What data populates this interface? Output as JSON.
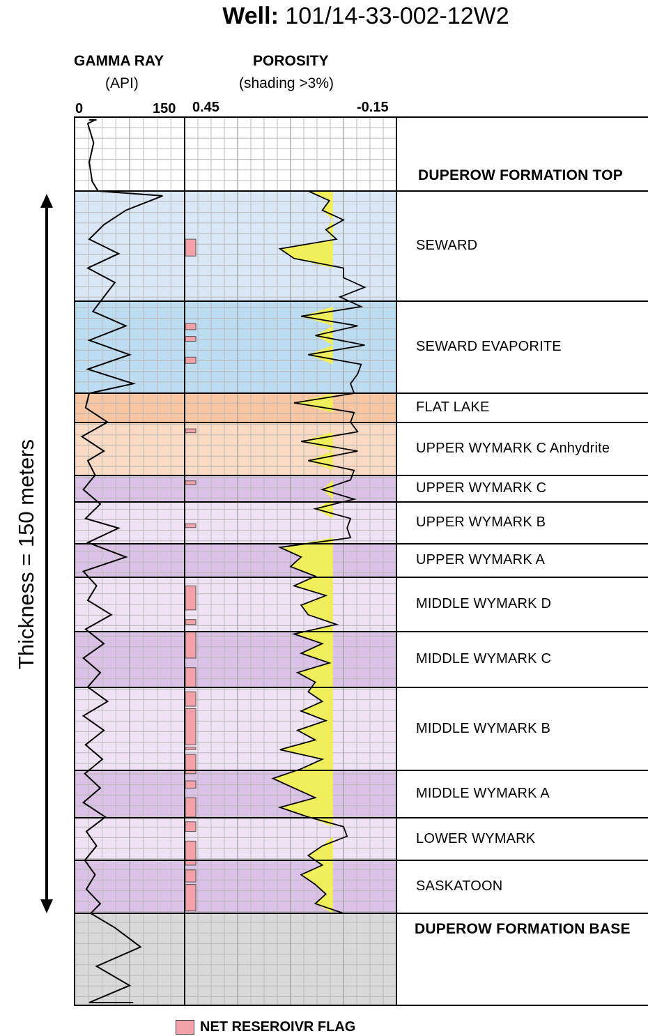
{
  "title_prefix": "Well:",
  "title_value": "101/14-33-002-12W2",
  "axis_label": "Thickness = 150 meters",
  "legend_label": "NET RESEROIVR FLAG",
  "tracks": {
    "gamma": {
      "title": "GAMMA RAY",
      "unit": "(API)",
      "min_label": "0",
      "max_label": "150"
    },
    "porosity": {
      "title": "POROSITY",
      "unit": "(shading >3%)",
      "left_label": "0.45",
      "right_label": "-0.15"
    }
  },
  "colors": {
    "seward": "#dae7f7",
    "seward_evaporite": "#bcdcf2",
    "flat_lake": "#f8c6a2",
    "upper_c_anhydrite": "#fadac2",
    "purple_dark": "#dcc1e6",
    "purple_light": "#efe2f4",
    "outside": "#d9d9d9",
    "porosity_fill": "#f1ee5c",
    "flag": "#f4a0a8"
  },
  "chart_data": {
    "type": "well_log",
    "thickness_m": 150,
    "zones": [
      {
        "name": "DUPEROW FORMATION TOP",
        "color": "outside_none",
        "bold": true
      },
      {
        "name": "SEWARD",
        "color": "seward"
      },
      {
        "name": "SEWARD EVAPORITE",
        "color": "seward_evaporite"
      },
      {
        "name": "FLAT LAKE",
        "color": "flat_lake"
      },
      {
        "name": "UPPER WYMARK C Anhydrite",
        "color": "upper_c_anhydrite"
      },
      {
        "name": "UPPER WYMARK C",
        "color": "purple_dark"
      },
      {
        "name": "UPPER WYMARK B",
        "color": "purple_light"
      },
      {
        "name": "UPPER WYMARK A",
        "color": "purple_dark"
      },
      {
        "name": "MIDDLE WYMARK D",
        "color": "purple_light"
      },
      {
        "name": "MIDDLE WYMARK C",
        "color": "purple_dark"
      },
      {
        "name": "MIDDLE WYMARK B",
        "color": "purple_light"
      },
      {
        "name": "MIDDLE WYMARK A",
        "color": "purple_dark"
      },
      {
        "name": "LOWER WYMARK",
        "color": "purple_light"
      },
      {
        "name": "SASKATOON",
        "color": "purple_dark"
      },
      {
        "name": "DUPEROW FORMATION BASE",
        "color": "outside",
        "bold": true
      }
    ],
    "gamma_ray": {
      "unit": "API",
      "range": [
        0,
        150
      ],
      "depth_m": [
        -30,
        -26,
        -22,
        -18,
        -14,
        -10,
        -6,
        -2,
        0,
        1,
        4,
        7,
        10,
        13,
        16,
        19,
        22,
        25,
        28,
        31,
        34,
        37,
        40,
        42,
        45,
        48,
        51,
        54,
        56,
        59,
        62,
        65,
        68,
        70,
        73,
        76,
        79,
        82,
        85,
        88,
        91,
        94,
        97,
        100,
        103,
        106,
        109,
        112,
        115,
        118,
        121,
        124,
        127,
        130,
        133,
        136,
        139,
        142,
        145,
        148,
        150,
        153,
        157,
        161,
        165,
        169,
        173,
        177,
        181
      ],
      "values": [
        22,
        30,
        20,
        28,
        18,
        26,
        20,
        24,
        32,
        120,
        70,
        40,
        20,
        60,
        18,
        55,
        40,
        25,
        70,
        20,
        75,
        18,
        80,
        20,
        15,
        45,
        10,
        40,
        18,
        28,
        12,
        35,
        15,
        60,
        18,
        70,
        12,
        30,
        18,
        50,
        15,
        40,
        12,
        35,
        18,
        45,
        12,
        40,
        15,
        38,
        14,
        35,
        12,
        42,
        16,
        30,
        14,
        28,
        16,
        35,
        22,
        55,
        90,
        30,
        75,
        20,
        80,
        25,
        70
      ]
    },
    "porosity": {
      "unit": "v/v",
      "range": [
        0.45,
        -0.15
      ],
      "shading_cutoff": 0.03,
      "depth_m": [
        0,
        2,
        4,
        6,
        8,
        10,
        12,
        14,
        16,
        18,
        20,
        22,
        24,
        26,
        28,
        30,
        32,
        34,
        36,
        38,
        40,
        42,
        44,
        46,
        48,
        50,
        52,
        54,
        56,
        58,
        60,
        62,
        64,
        66,
        68,
        70,
        72,
        74,
        76,
        78,
        80,
        82,
        84,
        86,
        88,
        90,
        92,
        94,
        96,
        98,
        100,
        102,
        104,
        106,
        108,
        110,
        112,
        114,
        116,
        118,
        120,
        122,
        124,
        126,
        128,
        130,
        132,
        134,
        136,
        138,
        140,
        142,
        144,
        146,
        148,
        150
      ],
      "values": [
        0.1,
        0.04,
        0.06,
        0.0,
        0.05,
        0.02,
        0.18,
        0.14,
        0.0,
        0.0,
        -0.06,
        0.01,
        -0.05,
        0.12,
        -0.04,
        0.08,
        -0.06,
        0.1,
        -0.05,
        -0.04,
        -0.02,
        -0.03,
        0.14,
        -0.03,
        -0.02,
        -0.04,
        0.12,
        -0.04,
        0.1,
        -0.03,
        -0.02,
        0.06,
        -0.03,
        0.08,
        -0.02,
        -0.01,
        -0.02,
        0.18,
        0.12,
        0.15,
        0.08,
        0.14,
        0.05,
        0.12,
        0.1,
        0.02,
        0.14,
        0.06,
        0.12,
        0.04,
        0.13,
        0.08,
        0.1,
        0.06,
        0.12,
        0.05,
        0.13,
        0.08,
        0.18,
        0.06,
        0.12,
        0.2,
        0.14,
        0.08,
        0.18,
        0.1,
        0.0,
        -0.01,
        0.06,
        0.1,
        0.06,
        0.12,
        0.08,
        0.05,
        0.08,
        0.0
      ]
    },
    "net_reservoir_flag": {
      "intervals_m": [
        [
          10,
          13.5
        ],
        [
          27.5,
          28.8
        ],
        [
          30.2,
          31.2
        ],
        [
          34.5,
          35.8
        ],
        [
          49.4,
          50.2
        ],
        [
          60.2,
          61
        ],
        [
          69.1,
          69.9
        ],
        [
          82,
          87
        ],
        [
          89,
          90
        ],
        [
          91.5,
          97
        ],
        [
          99,
          103
        ],
        [
          104,
          107
        ],
        [
          107.5,
          115
        ],
        [
          115.5,
          116
        ],
        [
          117,
          121
        ],
        [
          122.5,
          124
        ],
        [
          126,
          130
        ],
        [
          131,
          133
        ],
        [
          135,
          140
        ],
        [
          141,
          143.5
        ],
        [
          144,
          149.5
        ]
      ]
    }
  }
}
